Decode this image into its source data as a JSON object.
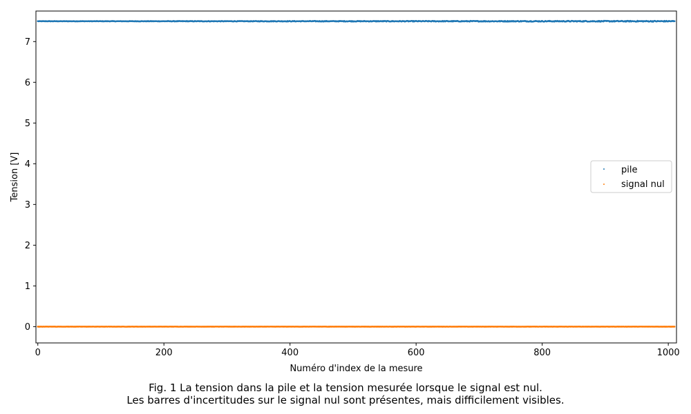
{
  "chart_data": {
    "type": "scatter",
    "xlabel": "Numéro d'index de la mesure",
    "ylabel": "Tension [V]",
    "xlim": [
      -3,
      1013
    ],
    "ylim": [
      -0.4,
      7.75
    ],
    "xticks": [
      0,
      200,
      400,
      600,
      800,
      1000
    ],
    "xtick_labels": [
      "0",
      "200",
      "400",
      "600",
      "800",
      "1000"
    ],
    "yticks": [
      0,
      1,
      2,
      3,
      4,
      5,
      6,
      7
    ],
    "ytick_labels": [
      "0",
      "1",
      "2",
      "3",
      "4",
      "5",
      "6",
      "7"
    ],
    "grid": false,
    "legend_position": "center-right",
    "series": [
      {
        "name": "pile",
        "color": "#1f77b4",
        "x_start": 0,
        "x_end": 1010,
        "count": 1011,
        "y_mean": 7.5,
        "y_noise_start": 0.004,
        "y_noise_end": 0.012
      },
      {
        "name": "signal nul",
        "color": "#ff7f0e",
        "x_start": 0,
        "x_end": 1010,
        "count": 1011,
        "y_mean": 0.0,
        "y_noise_start": 0.002,
        "y_noise_end": 0.002
      }
    ]
  },
  "caption": {
    "line1": "Fig. 1 La tension dans la pile et la tension mesurée lorsque le signal est nul.",
    "line2": "Les barres d'incertitudes sur le signal nul sont présentes, mais difficilement visibles."
  }
}
